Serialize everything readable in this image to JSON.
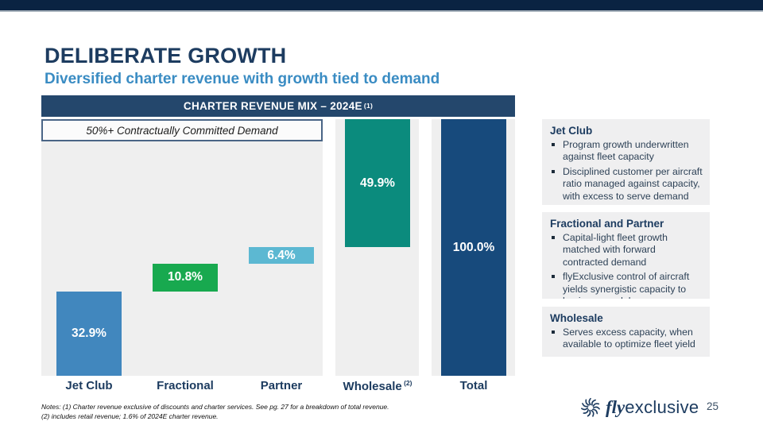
{
  "slide": {
    "title": "DELIBERATE GROWTH",
    "subtitle": "Diversified charter revenue with growth tied to demand",
    "page_number": "25"
  },
  "chart": {
    "header": "CHARTER REVENUE MIX – 2024E",
    "header_superscript": "(1)",
    "annotation": "50%+ Contractually Committed Demand"
  },
  "chart_data": {
    "type": "bar",
    "subtype": "waterfall",
    "title": "CHARTER REVENUE MIX – 2024E (1)",
    "categories": [
      "Jet Club",
      "Fractional",
      "Partner",
      "Wholesale",
      "Total"
    ],
    "category_superscripts": [
      "",
      "",
      "",
      "(2)",
      ""
    ],
    "values": [
      32.9,
      10.8,
      6.4,
      49.9,
      100.0
    ],
    "starts": [
      0,
      32.9,
      43.7,
      50.1,
      0
    ],
    "labels": [
      "32.9%",
      "10.8%",
      "6.4%",
      "49.9%",
      "100.0%"
    ],
    "colors": [
      "#4187be",
      "#18a94f",
      "#5cb8d2",
      "#0b8b7d",
      "#174a7c"
    ],
    "bar_label_color": "#ffffff",
    "ylim": [
      0,
      100
    ],
    "annotation": "50%+ Contractually Committed Demand",
    "annotation_spans_categories": [
      "Jet Club",
      "Fractional",
      "Partner"
    ],
    "legend": "none",
    "grid": false
  },
  "panels": [
    {
      "heading": "Jet Club",
      "bullets": [
        "Program growth underwritten against fleet capacity",
        "Disciplined customer per aircraft ratio managed against capacity, with excess to serve demand"
      ]
    },
    {
      "heading": "Fractional and Partner",
      "bullets": [
        "Capital-light fleet growth matched with forward contracted demand",
        "flyExclusive control of aircraft yields synergistic capacity to business model"
      ]
    },
    {
      "heading": "Wholesale",
      "bullets": [
        "Serves excess capacity, when available to optimize fleet yield"
      ]
    }
  ],
  "notes": {
    "line1": "Notes: (1) Charter revenue exclusive of discounts and charter services. See pg. 27 for a breakdown of total revenue.",
    "line2": "(2) includes retail revenue; 1.6% of 2024E charter revenue."
  },
  "logo": {
    "brand_italic": "fly",
    "brand_rest": "exclusive",
    "icon": "swirl-logo-icon"
  },
  "colors": {
    "top_bar": "#0a2342",
    "header_band": "#24476c",
    "title_navy": "#1d3c60",
    "subtitle_blue": "#3a8cc3",
    "panel_bg": "#efeff0",
    "column_bg": "#efefef"
  }
}
